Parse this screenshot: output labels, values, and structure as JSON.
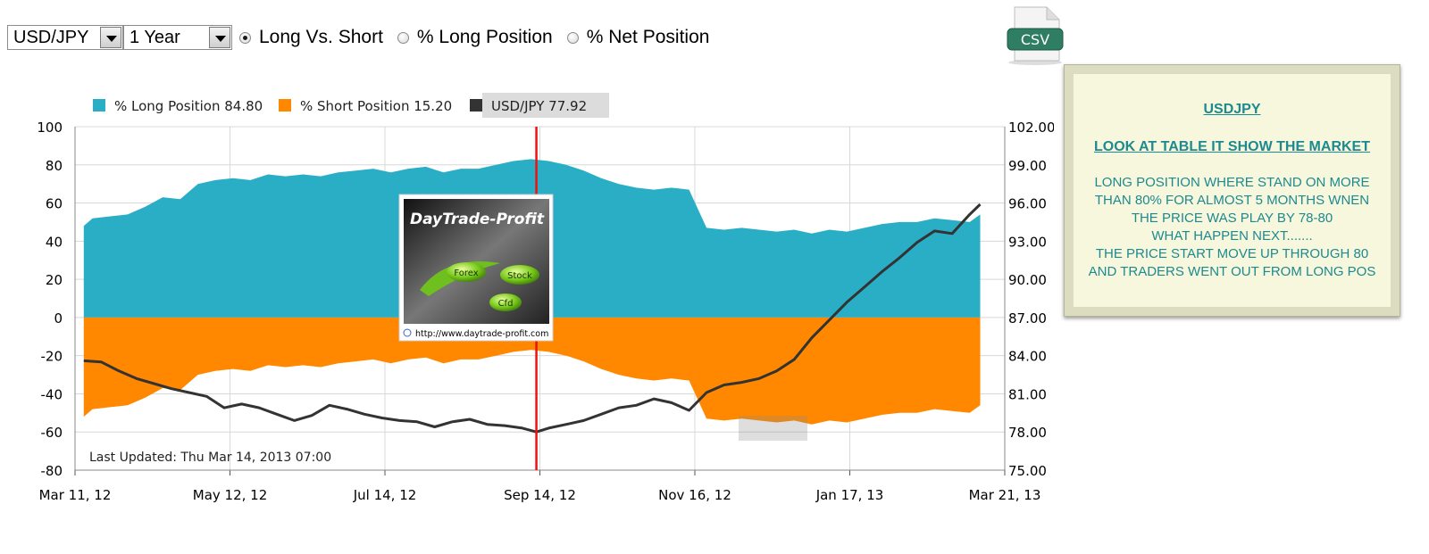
{
  "controls": {
    "pair_select": "USD/JPY",
    "period_select": "1 Year",
    "radios": [
      {
        "label": "Long Vs. Short",
        "checked": true
      },
      {
        "label": "% Long Position",
        "checked": false
      },
      {
        "label": "% Net Position",
        "checked": false
      }
    ]
  },
  "csv_label": "CSV",
  "note": {
    "title": "USDJPY",
    "subtitle": "LOOK AT TABLE  IT SHOW THE  MARKET",
    "lines": [
      "LONG POSITION WHERE STAND ON MORE",
      "THAN 80% FOR ALMOST 5 MONTHS WNEN",
      "THE PRICE WAS PLAY BY 78-80",
      "WHAT HAPPEN NEXT.......",
      "THE PRICE START MOVE UP THROUGH 80",
      "AND TRADERS WENT OUT FROM LONG POS"
    ]
  },
  "overlay_logo": {
    "title": "DayTrade-Profit",
    "bubbles": [
      "Forex",
      "Stock",
      "Cfd"
    ],
    "url": "http://www.daytrade-profit.com"
  },
  "chart_data": {
    "type": "area",
    "last_updated": "Last Updated: Thu Mar 14, 2013 07:00",
    "legend": [
      {
        "label": "% Long Position 84.80",
        "color": "#2aaec6"
      },
      {
        "label": "% Short Position 15.20",
        "color": "#ff8800"
      },
      {
        "label": "USD/JPY 77.92",
        "color": "#333333"
      }
    ],
    "x_ticks": [
      "Mar 11, 12",
      "May 12, 12",
      "Jul 14, 12",
      "Sep 14, 12",
      "Nov 16, 12",
      "Jan 17, 13",
      "Mar 21, 13"
    ],
    "y_left": {
      "min": -80,
      "max": 100,
      "ticks": [
        "100",
        "80",
        "60",
        "40",
        "20",
        "0",
        "-20",
        "-40",
        "-60",
        "-80"
      ]
    },
    "y_right": {
      "min": 75,
      "max": 102,
      "ticks": [
        "102.00",
        "99.00",
        "96.00",
        "93.00",
        "90.00",
        "87.00",
        "84.00",
        "81.00",
        "78.00",
        "75.00"
      ]
    },
    "x_domain_weeks": [
      0,
      53
    ],
    "marker_week": 26.3,
    "series": [
      {
        "name": "% Long Position",
        "color": "#2aaec6",
        "x_weeks": [
          0.5,
          1,
          2,
          3,
          4,
          5,
          6,
          7,
          8,
          9,
          10,
          11,
          12,
          13,
          14,
          15,
          16,
          17,
          18,
          19,
          20,
          21,
          22,
          23,
          24,
          25,
          26,
          27,
          28,
          29,
          30,
          31,
          32,
          33,
          34,
          35,
          36,
          37,
          38,
          39,
          40,
          41,
          42,
          43,
          44,
          45,
          46,
          47,
          48,
          49,
          50,
          51,
          51.6
        ],
        "values": [
          48,
          52,
          53,
          54,
          58,
          63,
          62,
          70,
          72,
          73,
          72,
          75,
          74,
          75,
          74,
          76,
          77,
          78,
          76,
          78,
          79,
          76,
          78,
          78,
          80,
          82,
          83,
          82,
          80,
          77,
          73,
          70,
          68,
          67,
          68,
          67,
          47,
          46,
          47,
          46,
          45,
          46,
          44,
          46,
          45,
          47,
          49,
          50,
          50,
          52,
          51,
          50,
          54
        ]
      },
      {
        "name": "% Short Position",
        "color": "#ff8800",
        "x_weeks": [
          0.5,
          1,
          2,
          3,
          4,
          5,
          6,
          7,
          8,
          9,
          10,
          11,
          12,
          13,
          14,
          15,
          16,
          17,
          18,
          19,
          20,
          21,
          22,
          23,
          24,
          25,
          26,
          27,
          28,
          29,
          30,
          31,
          32,
          33,
          34,
          35,
          36,
          37,
          38,
          39,
          40,
          41,
          42,
          43,
          44,
          45,
          46,
          47,
          48,
          49,
          50,
          51,
          51.6
        ],
        "values": [
          -52,
          -48,
          -47,
          -46,
          -42,
          -37,
          -38,
          -30,
          -28,
          -27,
          -28,
          -25,
          -26,
          -25,
          -26,
          -24,
          -23,
          -22,
          -24,
          -22,
          -21,
          -24,
          -22,
          -22,
          -20,
          -18,
          -17,
          -18,
          -20,
          -23,
          -27,
          -30,
          -32,
          -33,
          -32,
          -33,
          -53,
          -54,
          -53,
          -54,
          -55,
          -54,
          -56,
          -54,
          -55,
          -53,
          -51,
          -50,
          -50,
          -48,
          -49,
          -50,
          -46
        ]
      },
      {
        "name": "USD/JPY",
        "color": "#333333",
        "x_weeks": [
          0.5,
          1.5,
          2.5,
          3.5,
          4.5,
          5.5,
          6.5,
          7.5,
          8.5,
          9.5,
          10.5,
          11.5,
          12.5,
          13.5,
          14.5,
          15.5,
          16.5,
          17.5,
          18.5,
          19.5,
          20.5,
          21.5,
          22.5,
          23.5,
          24.5,
          25.5,
          26.3,
          27,
          28,
          29,
          30,
          31,
          32,
          33,
          34,
          35,
          36,
          37,
          38,
          39,
          40,
          41,
          42,
          43,
          44,
          45,
          46,
          47,
          48,
          49,
          50,
          51,
          51.6
        ],
        "values": [
          83.6,
          83.5,
          82.8,
          82.2,
          81.8,
          81.4,
          81.1,
          80.8,
          79.9,
          80.2,
          79.9,
          79.4,
          78.9,
          79.3,
          80.1,
          79.8,
          79.4,
          79.1,
          78.9,
          78.8,
          78.4,
          78.8,
          79.0,
          78.6,
          78.5,
          78.3,
          78.0,
          78.3,
          78.6,
          78.9,
          79.4,
          79.9,
          80.1,
          80.6,
          80.3,
          79.7,
          81.1,
          81.7,
          81.9,
          82.2,
          82.8,
          83.7,
          85.4,
          86.8,
          88.2,
          89.4,
          90.6,
          91.7,
          92.9,
          93.8,
          93.6,
          95.1,
          95.9
        ]
      }
    ]
  }
}
